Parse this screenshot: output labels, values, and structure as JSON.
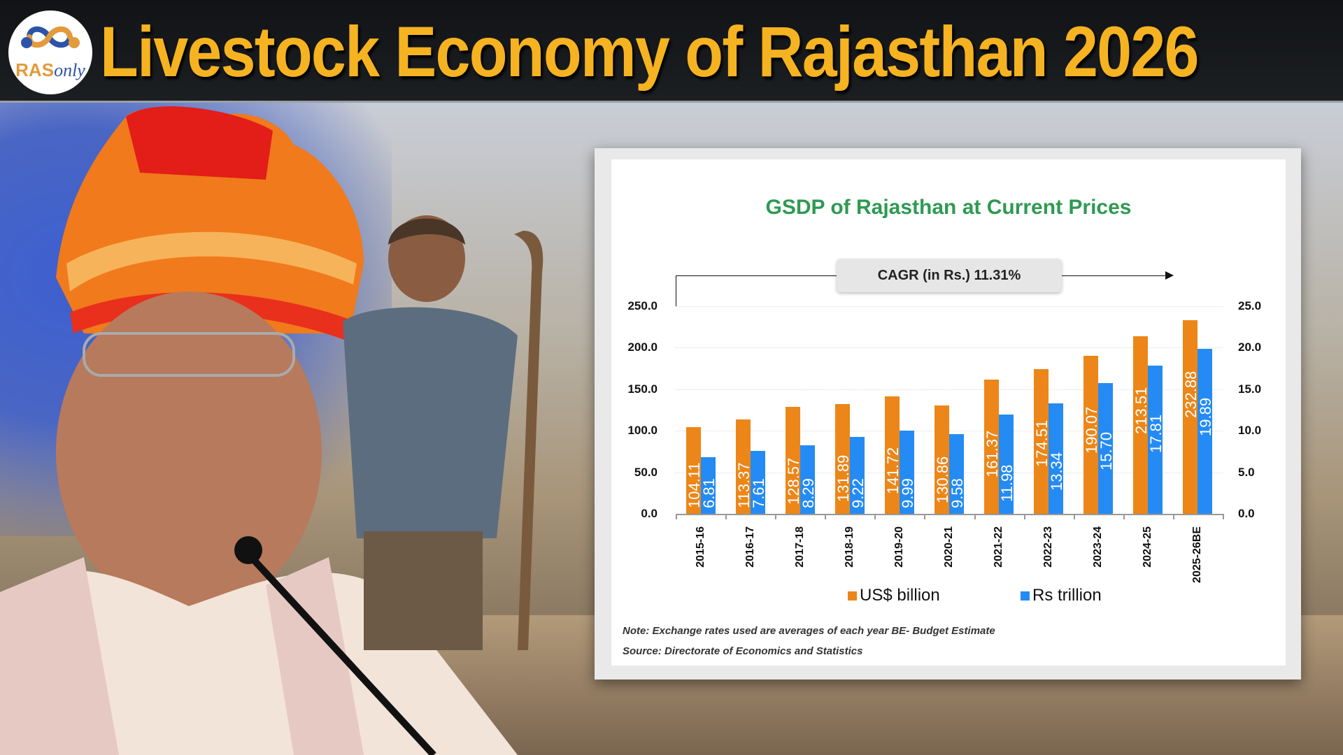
{
  "header": {
    "logo": {
      "part1": "RAS",
      "part2": "only",
      "icon": "infinity-loop-icon"
    },
    "title": "Livestock Economy of Rajasthan 2026"
  },
  "colors": {
    "title_yellow": "#f6b321",
    "chart_title_green": "#2e9a52",
    "usd_orange": "#ec8618",
    "rs_blue": "#248bf4"
  },
  "chart_data": {
    "type": "bar",
    "title": "GSDP of Rajasthan at Current Prices",
    "annotation": "CAGR (in Rs.) 11.31%",
    "categories": [
      "2015-16",
      "2016-17",
      "2017-18",
      "2018-19",
      "2019-20",
      "2020-21",
      "2021-22",
      "2022-23",
      "2023-24",
      "2024-25",
      "2025-26BE"
    ],
    "series": [
      {
        "name": "US$ billion",
        "axis": "left",
        "color": "#ec8618",
        "values": [
          104.11,
          113.37,
          128.57,
          131.89,
          141.72,
          130.86,
          161.37,
          174.51,
          190.07,
          213.51,
          232.88
        ],
        "labels": [
          "104.11",
          "113.37",
          "128.57",
          "131.89",
          "141.72",
          "130.86",
          "161.37",
          "174.51",
          "190.07",
          "213.51",
          "232.88"
        ]
      },
      {
        "name": "Rs trillion",
        "axis": "right",
        "color": "#248bf4",
        "values": [
          6.81,
          7.61,
          8.29,
          9.22,
          9.99,
          9.58,
          11.98,
          13.34,
          15.7,
          17.81,
          19.89
        ],
        "labels": [
          "6.81",
          "7.61",
          "8.29",
          "9.22",
          "9.99",
          "9.58",
          "11.98",
          "13.34",
          "15.70",
          "17.81",
          "19.89"
        ]
      }
    ],
    "left_ticks": [
      "0.0",
      "50.0",
      "100.0",
      "150.0",
      "200.0",
      "250.0"
    ],
    "right_ticks": [
      "0.0",
      "5.0",
      "10.0",
      "15.0",
      "20.0",
      "25.0"
    ],
    "ylim_left": [
      0,
      250
    ],
    "ylim_right": [
      0,
      25
    ],
    "grid": true,
    "legend_position": "bottom",
    "xlabel": "",
    "ylabel": ""
  },
  "legend": {
    "usd": "US$ billion",
    "rs": "Rs trillion"
  },
  "notes": {
    "note": "Note: Exchange rates used are averages of each year BE- Budget Estimate",
    "source": "Source: Directorate of Economics and Statistics"
  }
}
